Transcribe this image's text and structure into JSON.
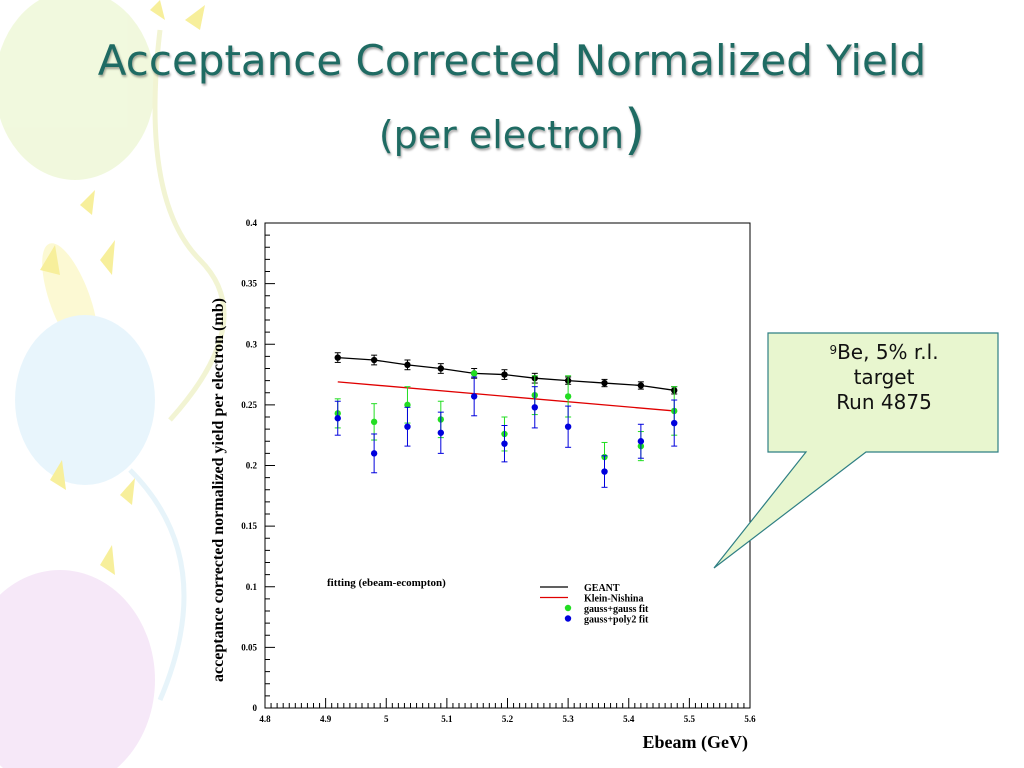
{
  "slide": {
    "title_line1": "Acceptance Corrected Normalized Yield",
    "title_line2": "(per electron",
    "title_paren": ")"
  },
  "callout": {
    "superscript": "9",
    "line1": "Be, 5% r.l.",
    "line2": "target",
    "line3": "Run 4875",
    "fill": "#e8f6cf",
    "border": "#2f7f84"
  },
  "chart_data": {
    "type": "scatter",
    "title": "",
    "xlabel": "Ebeam (GeV)",
    "ylabel": "acceptance corrected normalized yield per electron (mb)",
    "xlim": [
      4.8,
      5.6
    ],
    "ylim": [
      0,
      0.4
    ],
    "xticks": [
      "4.8",
      "4.9",
      "5",
      "5.1",
      "5.2",
      "5.3",
      "5.4",
      "5.5",
      "5.6"
    ],
    "yticks": [
      "0",
      "0.05",
      "0.1",
      "0.15",
      "0.2",
      "0.25",
      "0.3",
      "0.35",
      "0.4"
    ],
    "annotation": "fitting (ebeam-ecompton)",
    "legend_position": "bottom-right",
    "series": [
      {
        "name": "GEANT",
        "style": "line-with-points",
        "color": "#000000",
        "x": [
          4.92,
          4.98,
          5.035,
          5.09,
          5.145,
          5.195,
          5.245,
          5.3,
          5.36,
          5.42,
          5.475
        ],
        "y": [
          0.289,
          0.287,
          0.283,
          0.28,
          0.276,
          0.275,
          0.272,
          0.27,
          0.268,
          0.266,
          0.262
        ],
        "err": [
          0.004,
          0.004,
          0.004,
          0.004,
          0.004,
          0.004,
          0.004,
          0.003,
          0.003,
          0.003,
          0.003
        ]
      },
      {
        "name": "Klein-Nishina",
        "style": "line",
        "color": "#e00000",
        "x": [
          4.92,
          5.475
        ],
        "y": [
          0.269,
          0.245
        ]
      },
      {
        "name": "gauss+gauss fit",
        "style": "points",
        "color": "#22dd22",
        "x": [
          4.92,
          4.98,
          5.035,
          5.09,
          5.145,
          5.195,
          5.245,
          5.3,
          5.36,
          5.42,
          5.475
        ],
        "y": [
          0.243,
          0.236,
          0.25,
          0.238,
          0.276,
          0.226,
          0.258,
          0.257,
          0.207,
          0.216,
          0.245
        ],
        "err": [
          0.012,
          0.015,
          0.015,
          0.015,
          0.0,
          0.014,
          0.016,
          0.017,
          0.012,
          0.012,
          0.02
        ]
      },
      {
        "name": "gauss+poly2 fit",
        "style": "points",
        "color": "#0000dd",
        "x": [
          4.92,
          4.98,
          5.035,
          5.09,
          5.145,
          5.195,
          5.245,
          5.3,
          5.36,
          5.42,
          5.475
        ],
        "y": [
          0.239,
          0.21,
          0.232,
          0.227,
          0.257,
          0.218,
          0.248,
          0.232,
          0.195,
          0.22,
          0.235
        ],
        "err": [
          0.014,
          0.016,
          0.016,
          0.017,
          0.016,
          0.015,
          0.017,
          0.017,
          0.013,
          0.014,
          0.019
        ]
      }
    ]
  }
}
